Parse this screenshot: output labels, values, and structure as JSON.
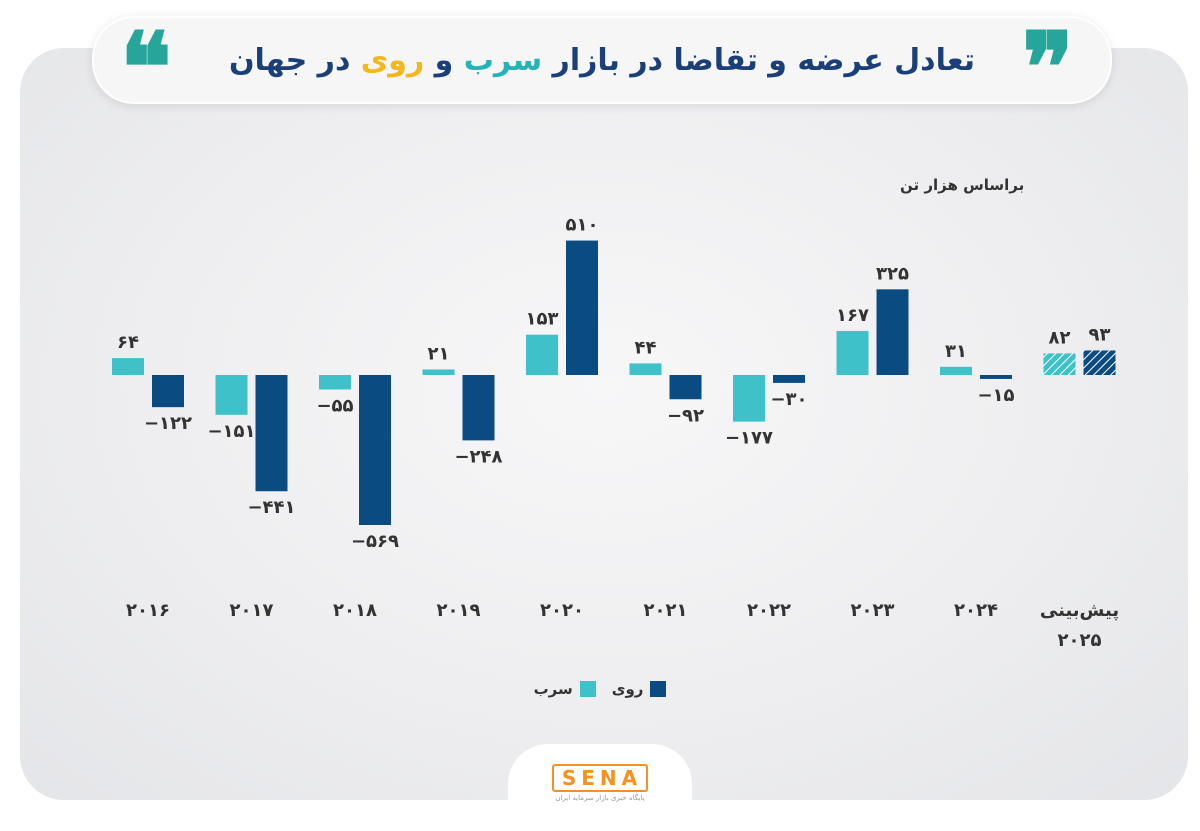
{
  "header": {
    "title_lead": "تعادل عرضه و تقاضا در بازار",
    "title_metal1": "سرب",
    "title_and": "و",
    "title_metal2": "روی",
    "title_tail": "در جهان",
    "quote_open": "❝",
    "quote_close": "❞"
  },
  "unit_label": "براساس هزار تن",
  "colors": {
    "lead": "#3fc1c9",
    "zinc": "#0a4b82",
    "title_main": "#1b3f78",
    "title_highlight": "#f4b71c",
    "brand": "#f59121"
  },
  "chart_data": {
    "type": "bar",
    "categories": [
      "2016",
      "2017",
      "2018",
      "2019",
      "2020",
      "2021",
      "2022",
      "2023",
      "2024",
      "پیش‌بینی 2025"
    ],
    "series": [
      {
        "name": "سرب",
        "values": [
          64,
          -151,
          -55,
          21,
          153,
          44,
          -177,
          167,
          31,
          82
        ],
        "labels": [
          "۶۴",
          "−۱۵۱",
          "−۵۵",
          "۲۱",
          "۱۵۳",
          "۴۴",
          "−۱۷۷",
          "۱۶۷",
          "۳۱",
          "۸۲"
        ]
      },
      {
        "name": "روی",
        "values": [
          -122,
          -441,
          -569,
          -248,
          510,
          -92,
          -30,
          325,
          -15,
          93
        ],
        "labels": [
          "−۱۲۲",
          "−۴۴۱",
          "−۵۶۹",
          "−۲۴۸",
          "۵۱۰",
          "−۹۲",
          "−۳۰",
          "۳۲۵",
          "−۱۵",
          "۹۳"
        ]
      }
    ],
    "category_labels": [
      "۲۰۱۶",
      "۲۰۱۷",
      "۲۰۱۸",
      "۲۰۱۹",
      "۲۰۲۰",
      "۲۰۲۱",
      "۲۰۲۲",
      "۲۰۲۳",
      "۲۰۲۴",
      "پیش‌بینی\n۲۰۲۵"
    ],
    "forecast_category": "پیش‌بینی 2025",
    "forecast_style": "hatched",
    "grid": false,
    "legend_position": "bottom-center"
  },
  "legend": [
    {
      "label": "روی",
      "color": "#0a4b82"
    },
    {
      "label": "سرب",
      "color": "#3fc1c9"
    }
  ],
  "brand": {
    "logo": "SENA",
    "tagline": "پایگاه خبری بازار سرمایه ایران"
  }
}
